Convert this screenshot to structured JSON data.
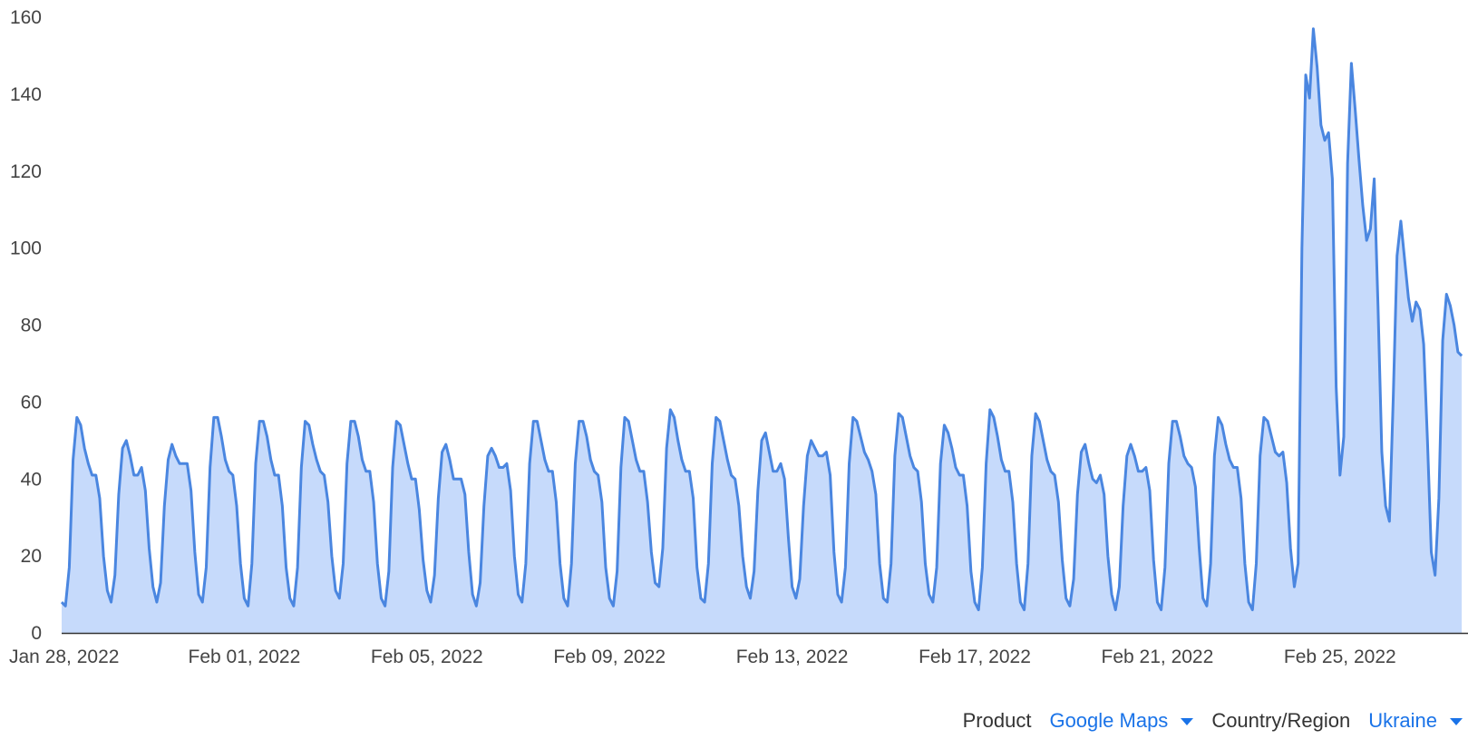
{
  "chart_data": {
    "type": "area",
    "title": "",
    "xlabel": "",
    "ylabel": "",
    "ylim": [
      0,
      160
    ],
    "yticks": [
      "0",
      "20",
      "40",
      "60",
      "80",
      "100",
      "120",
      "140",
      "160"
    ],
    "xticks": [
      {
        "label": "Jan 28, 2022",
        "date": "2022-01-28"
      },
      {
        "label": "Feb 01, 2022",
        "date": "2022-02-01"
      },
      {
        "label": "Feb 05, 2022",
        "date": "2022-02-05"
      },
      {
        "label": "Feb 09, 2022",
        "date": "2022-02-09"
      },
      {
        "label": "Feb 13, 2022",
        "date": "2022-02-13"
      },
      {
        "label": "Feb 17, 2022",
        "date": "2022-02-17"
      },
      {
        "label": "Feb 21, 2022",
        "date": "2022-02-21"
      },
      {
        "label": "Feb 25, 2022",
        "date": "2022-02-25"
      }
    ],
    "x_start": "2022-01-28 00:00",
    "x_step": "2h",
    "grid": false,
    "line_color": "#4a86e0",
    "fill_color": "#c6dafb",
    "series": [
      {
        "values": [
          8,
          7,
          17,
          45,
          56,
          54,
          48,
          44,
          41,
          41,
          35,
          20,
          11,
          8,
          15,
          36,
          48,
          50,
          46,
          41,
          41,
          43,
          37,
          22,
          12,
          8,
          13,
          33,
          45,
          49,
          46,
          44,
          44,
          44,
          37,
          21,
          10,
          8,
          17,
          43,
          56,
          56,
          51,
          45,
          42,
          41,
          33,
          18,
          9,
          7,
          18,
          44,
          55,
          55,
          51,
          45,
          41,
          41,
          33,
          17,
          9,
          7,
          17,
          43,
          55,
          54,
          49,
          45,
          42,
          41,
          34,
          20,
          11,
          9,
          18,
          44,
          55,
          55,
          51,
          45,
          42,
          42,
          34,
          18,
          9,
          7,
          16,
          43,
          55,
          54,
          49,
          44,
          40,
          40,
          32,
          19,
          11,
          8,
          15,
          35,
          47,
          49,
          45,
          40,
          40,
          40,
          36,
          21,
          10,
          7,
          13,
          33,
          46,
          48,
          46,
          43,
          43,
          44,
          37,
          20,
          10,
          8,
          18,
          44,
          55,
          55,
          50,
          45,
          42,
          42,
          34,
          18,
          9,
          7,
          18,
          44,
          55,
          55,
          51,
          45,
          42,
          41,
          34,
          17,
          9,
          7,
          16,
          43,
          56,
          55,
          50,
          45,
          42,
          42,
          34,
          21,
          13,
          12,
          22,
          48,
          58,
          56,
          50,
          45,
          42,
          42,
          35,
          17,
          9,
          8,
          18,
          44,
          56,
          55,
          50,
          45,
          41,
          40,
          33,
          20,
          12,
          9,
          16,
          37,
          50,
          52,
          47,
          42,
          42,
          44,
          40,
          25,
          12,
          9,
          14,
          33,
          46,
          50,
          48,
          46,
          46,
          47,
          41,
          21,
          10,
          8,
          17,
          44,
          56,
          55,
          51,
          47,
          45,
          42,
          36,
          18,
          9,
          8,
          18,
          46,
          57,
          56,
          51,
          46,
          43,
          42,
          34,
          18,
          10,
          8,
          17,
          44,
          54,
          52,
          48,
          43,
          41,
          41,
          33,
          16,
          8,
          6,
          17,
          44,
          58,
          56,
          51,
          45,
          42,
          42,
          34,
          18,
          8,
          6,
          18,
          46,
          57,
          55,
          50,
          45,
          42,
          41,
          34,
          19,
          9,
          7,
          14,
          36,
          47,
          49,
          44,
          40,
          39,
          41,
          36,
          20,
          10,
          6,
          12,
          33,
          46,
          49,
          46,
          42,
          42,
          43,
          37,
          19,
          8,
          6,
          17,
          44,
          55,
          55,
          51,
          46,
          44,
          43,
          38,
          22,
          9,
          7,
          18,
          46,
          56,
          54,
          49,
          45,
          43,
          43,
          35,
          18,
          8,
          6,
          18,
          46,
          56,
          55,
          51,
          47,
          46,
          47,
          39,
          22,
          12,
          18,
          100,
          145,
          139,
          157,
          147,
          132,
          128,
          130,
          118,
          64,
          41,
          51,
          122,
          148,
          136,
          123,
          111,
          102,
          105,
          118,
          85,
          47,
          33,
          29,
          61,
          98,
          107,
          97,
          87,
          81,
          86,
          84,
          75,
          50,
          21,
          15,
          35,
          76,
          88,
          85,
          80,
          73,
          72
        ]
      }
    ]
  },
  "controls": {
    "product_label": "Product",
    "product_value": "Google Maps",
    "region_label": "Country/Region",
    "region_value": "Ukraine"
  }
}
